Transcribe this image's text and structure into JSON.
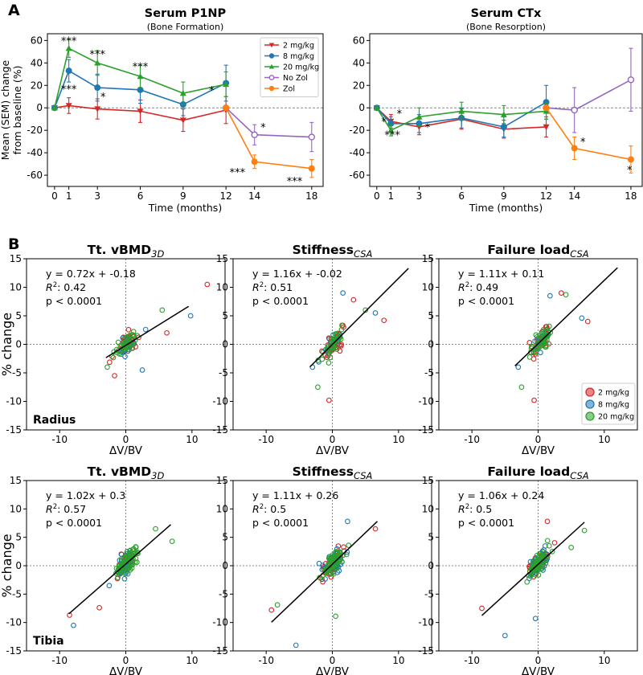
{
  "panels": {
    "a": "A",
    "b": "B"
  },
  "legend_a": [
    {
      "label": "2 mg/kg",
      "color": "#d62728"
    },
    {
      "label": "8 mg/kg",
      "color": "#1f77b4"
    },
    {
      "label": "20 mg/kg",
      "color": "#2ca02c"
    },
    {
      "label": "No Zol",
      "color": "#9467bd"
    },
    {
      "label": "Zol",
      "color": "#ff7f0e"
    }
  ],
  "legend_b": [
    {
      "label": "2 mg/kg",
      "color": "#d62728"
    },
    {
      "label": "8 mg/kg",
      "color": "#1f77b4"
    },
    {
      "label": "20 mg/kg",
      "color": "#2ca02c"
    }
  ],
  "chart_data": [
    {
      "type": "line",
      "title": "Serum P1NP",
      "subtitle": "(Bone Formation)",
      "xlabel": "Time (months)",
      "ylabel": "Mean (SEM) change from baseline (%)",
      "xlim": [
        -0.5,
        18.8
      ],
      "ylim": [
        -70,
        66
      ],
      "xticks": [
        0,
        1,
        3,
        6,
        9,
        12,
        14,
        18
      ],
      "yticks": [
        60,
        40,
        20,
        0,
        -20,
        -40,
        -60
      ],
      "series": [
        {
          "name": "2 mg/kg",
          "color": "#d62728",
          "marker": "v",
          "x": [
            0,
            1,
            3,
            6,
            9,
            12
          ],
          "y": [
            0,
            2,
            -1,
            -3,
            -11,
            -2
          ],
          "err": [
            0,
            7,
            9,
            10,
            10,
            12
          ]
        },
        {
          "name": "8 mg/kg",
          "color": "#1f77b4",
          "marker": "o",
          "x": [
            0,
            1,
            3,
            6,
            9,
            12
          ],
          "y": [
            0,
            33,
            18,
            16,
            3,
            22
          ],
          "err": [
            0,
            10,
            12,
            12,
            10,
            16
          ]
        },
        {
          "name": "20 mg/kg",
          "color": "#2ca02c",
          "marker": "^",
          "x": [
            0,
            1,
            3,
            6,
            9,
            12
          ],
          "y": [
            0,
            53,
            40,
            28,
            13,
            21
          ],
          "err": [
            0,
            8,
            11,
            10,
            10,
            11
          ]
        },
        {
          "name": "No Zol",
          "color": "#9467bd",
          "marker": "o_open",
          "x": [
            12,
            14,
            18
          ],
          "y": [
            0,
            -24,
            -26
          ],
          "err": [
            0,
            9,
            13
          ]
        },
        {
          "name": "Zol",
          "color": "#ff7f0e",
          "marker": "o",
          "x": [
            12,
            14,
            18
          ],
          "y": [
            0,
            -48,
            -54
          ],
          "err": [
            0,
            6,
            8
          ]
        }
      ],
      "annotations": [
        {
          "x": 1,
          "y": 60,
          "text": "***"
        },
        {
          "x": 1,
          "y": 17,
          "text": "***"
        },
        {
          "x": 3,
          "y": 48,
          "text": "***"
        },
        {
          "x": 3.4,
          "y": 10,
          "text": "*"
        },
        {
          "x": 6,
          "y": 37,
          "text": "***"
        },
        {
          "x": 11,
          "y": 16,
          "text": "*"
        },
        {
          "x": 14.6,
          "y": -17,
          "text": "*"
        },
        {
          "x": 12.8,
          "y": -57,
          "text": "***"
        },
        {
          "x": 16.8,
          "y": -65,
          "text": "***"
        }
      ],
      "legend_position": "top-right"
    },
    {
      "type": "line",
      "title": "Serum CTx",
      "subtitle": "(Bone Resorption)",
      "xlabel": "Time (months)",
      "ylabel": "",
      "xlim": [
        -0.5,
        18.8
      ],
      "ylim": [
        -70,
        66
      ],
      "xticks": [
        0,
        1,
        3,
        6,
        9,
        12,
        14,
        18
      ],
      "yticks": [
        60,
        40,
        20,
        0,
        -20,
        -40,
        -60
      ],
      "series": [
        {
          "name": "2 mg/kg",
          "color": "#d62728",
          "marker": "v",
          "x": [
            0,
            1,
            3,
            6,
            9,
            12
          ],
          "y": [
            0,
            -12,
            -17,
            -10,
            -19,
            -17
          ],
          "err": [
            0,
            6,
            7,
            9,
            8,
            9
          ]
        },
        {
          "name": "8 mg/kg",
          "color": "#1f77b4",
          "marker": "o",
          "x": [
            0,
            1,
            3,
            6,
            9,
            12
          ],
          "y": [
            0,
            -14,
            -14,
            -9,
            -17,
            5
          ],
          "err": [
            0,
            6,
            8,
            9,
            9,
            15
          ]
        },
        {
          "name": "20 mg/kg",
          "color": "#2ca02c",
          "marker": "^",
          "x": [
            0,
            1,
            3,
            6,
            9,
            12
          ],
          "y": [
            0,
            -20,
            -8,
            -3,
            -6,
            -3
          ],
          "err": [
            0,
            5,
            8,
            8,
            8,
            7
          ]
        },
        {
          "name": "No Zol",
          "color": "#9467bd",
          "marker": "o_open",
          "x": [
            12,
            14,
            18
          ],
          "y": [
            0,
            -2,
            25
          ],
          "err": [
            0,
            20,
            28
          ]
        },
        {
          "name": "Zol",
          "color": "#ff7f0e",
          "marker": "o",
          "x": [
            12,
            14,
            18
          ],
          "y": [
            0,
            -36,
            -46
          ],
          "err": [
            0,
            10,
            12
          ]
        }
      ],
      "annotations": [
        {
          "x": 0.5,
          "y": -12,
          "text": "*"
        },
        {
          "x": 1.6,
          "y": -5,
          "text": "*"
        },
        {
          "x": 1.1,
          "y": -24,
          "text": "***"
        },
        {
          "x": 3.6,
          "y": -17,
          "text": "*"
        },
        {
          "x": 14.6,
          "y": -30,
          "text": "*"
        },
        {
          "x": 17.9,
          "y": -55,
          "text": "*"
        }
      ]
    },
    {
      "type": "scatter",
      "row": "Radius",
      "title": "Tt. vBMD",
      "title_sub": "3D",
      "xlabel": "ΔV/BV",
      "ylabel": "% change",
      "xlim": [
        -15,
        15
      ],
      "ylim": [
        -15,
        15
      ],
      "xticks": [
        -10,
        0,
        10
      ],
      "yticks": [
        15,
        10,
        5,
        0,
        -5,
        -10,
        -15
      ],
      "eq": "y = 0.72x + -0.18",
      "r2": "0.42",
      "p": "p < 0.0001",
      "slope": 0.72,
      "intercept": -0.18,
      "fit_x": [
        -3,
        9.5
      ],
      "groups": {
        "2 mg/kg": 35,
        "8 mg/kg": 16,
        "20 mg/kg": 34
      },
      "highlights": [
        [
          12.3,
          10.5
        ],
        [
          9.8,
          5
        ],
        [
          5.5,
          6
        ],
        [
          6.2,
          2
        ],
        [
          3,
          2.6
        ],
        [
          -2.8,
          -4
        ],
        [
          -1.7,
          -5.5
        ],
        [
          2.5,
          -4.5
        ]
      ]
    },
    {
      "type": "scatter",
      "row": "Radius",
      "title": "Stiffness",
      "title_sub": "CSA",
      "xlabel": "ΔV/BV",
      "ylabel": "",
      "xlim": [
        -15,
        15
      ],
      "ylim": [
        -15,
        15
      ],
      "xticks": [
        -10,
        0,
        10
      ],
      "yticks": [
        15,
        10,
        5,
        0,
        -5,
        -10,
        -15
      ],
      "eq": "y = 1.16x + -0.02",
      "r2": "0.51",
      "p": "p < 0.0001",
      "slope": 1.16,
      "intercept": -0.02,
      "fit_x": [
        -3.4,
        11.5
      ],
      "groups": {
        "2 mg/kg": 35,
        "8 mg/kg": 16,
        "20 mg/kg": 34
      },
      "highlights": [
        [
          7.8,
          4.2
        ],
        [
          6.5,
          5.5
        ],
        [
          5,
          6
        ],
        [
          3.2,
          7.8
        ],
        [
          1.6,
          9
        ],
        [
          -2.2,
          -7.5
        ],
        [
          -0.5,
          -9.8
        ],
        [
          -3,
          -4
        ]
      ]
    },
    {
      "type": "scatter",
      "row": "Radius",
      "title": "Failure load",
      "title_sub": "CSA",
      "xlabel": "ΔV/BV",
      "ylabel": "",
      "xlim": [
        -15,
        15
      ],
      "ylim": [
        -15,
        15
      ],
      "xticks": [
        -10,
        0,
        10
      ],
      "yticks": [
        15,
        10,
        5,
        0,
        -5,
        -10,
        -15
      ],
      "eq": "y = 1.11x + 0.11",
      "r2": "0.49",
      "p": "p < 0.0001",
      "slope": 1.11,
      "intercept": 0.11,
      "fit_x": [
        -3.5,
        12
      ],
      "groups": {
        "2 mg/kg": 35,
        "8 mg/kg": 16,
        "20 mg/kg": 34
      },
      "highlights": [
        [
          7.5,
          4
        ],
        [
          6.6,
          4.6
        ],
        [
          4.2,
          8.7
        ],
        [
          3.5,
          9
        ],
        [
          1.8,
          8.5
        ],
        [
          -2.5,
          -7.5
        ],
        [
          -0.6,
          -9.8
        ],
        [
          -3,
          -4
        ]
      ]
    },
    {
      "type": "scatter",
      "row": "Tibia",
      "title": "Tt. vBMD",
      "title_sub": "3D",
      "xlabel": "ΔV/BV",
      "ylabel": "% change",
      "xlim": [
        -15,
        15
      ],
      "ylim": [
        -15,
        15
      ],
      "xticks": [
        -10,
        0,
        10
      ],
      "yticks": [
        15,
        10,
        5,
        0,
        -5,
        -10,
        -15
      ],
      "eq": "y = 1.02x + 0.3",
      "r2": "0.57",
      "p": "p < 0.0001",
      "slope": 1.02,
      "intercept": 0.3,
      "fit_x": [
        -8.6,
        6.8
      ],
      "groups": {
        "2 mg/kg": 40,
        "8 mg/kg": 45,
        "20 mg/kg": 62
      },
      "highlights": [
        [
          -8.5,
          -8.7
        ],
        [
          -7.9,
          -10.5
        ],
        [
          7,
          4.3
        ],
        [
          -4,
          -7.4
        ],
        [
          -2.5,
          -3.5
        ],
        [
          4.5,
          6.5
        ]
      ]
    },
    {
      "type": "scatter",
      "row": "Tibia",
      "title": "Stiffness",
      "title_sub": "CSA",
      "xlabel": "ΔV/BV",
      "ylabel": "",
      "xlim": [
        -15,
        15
      ],
      "ylim": [
        -15,
        15
      ],
      "xticks": [
        -10,
        0,
        10
      ],
      "yticks": [
        15,
        10,
        5,
        0,
        -5,
        -10,
        -15
      ],
      "eq": "y = 1.11x + 0.26",
      "r2": "0.5",
      "p": "p < 0.0001",
      "slope": 1.11,
      "intercept": 0.26,
      "fit_x": [
        -9.2,
        6.8
      ],
      "groups": {
        "2 mg/kg": 40,
        "8 mg/kg": 45,
        "20 mg/kg": 62
      },
      "highlights": [
        [
          -9.2,
          -7.8
        ],
        [
          -5.5,
          -14
        ],
        [
          -8.3,
          -6.9
        ],
        [
          6.5,
          6.5
        ],
        [
          2.3,
          7.8
        ],
        [
          0.5,
          -8.9
        ]
      ]
    },
    {
      "type": "scatter",
      "row": "Tibia",
      "title": "Failure load",
      "title_sub": "CSA",
      "xlabel": "ΔV/BV",
      "ylabel": "",
      "xlim": [
        -15,
        15
      ],
      "ylim": [
        -15,
        15
      ],
      "xticks": [
        -10,
        0,
        10
      ],
      "yticks": [
        15,
        10,
        5,
        0,
        -5,
        -10,
        -15
      ],
      "eq": "y = 1.06x + 0.24",
      "r2": "0.5",
      "p": "p < 0.0001",
      "slope": 1.06,
      "intercept": 0.24,
      "fit_x": [
        -8.5,
        7
      ],
      "groups": {
        "2 mg/kg": 40,
        "8 mg/kg": 45,
        "20 mg/kg": 62
      },
      "highlights": [
        [
          -8.5,
          -7.5
        ],
        [
          -5,
          -12.3
        ],
        [
          7,
          6.2
        ],
        [
          1.4,
          7.8
        ],
        [
          -0.4,
          -9.3
        ],
        [
          5,
          3.2
        ]
      ]
    }
  ]
}
